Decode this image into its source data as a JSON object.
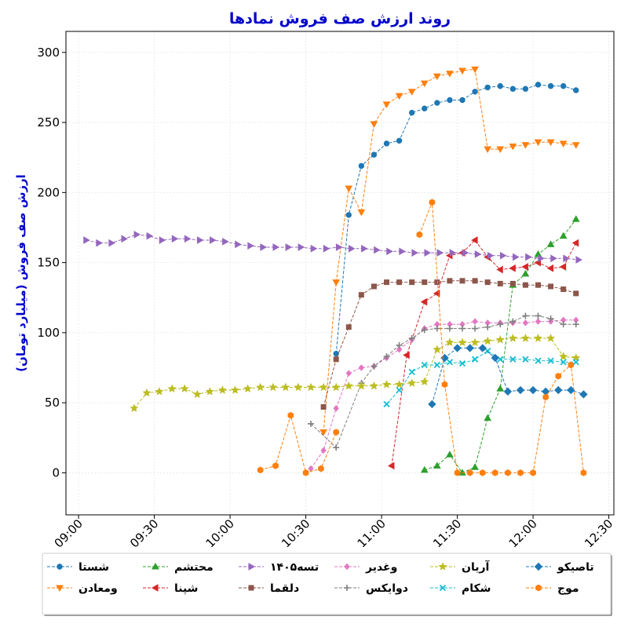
{
  "chart_data": {
    "type": "line",
    "title": "روند ارزش صف فروش نمادها",
    "ylabel": "ارزش صف فروش (میلیارد تومان)",
    "xlabel": "",
    "x_unit": "time (HH:MM)",
    "xlim": [
      "08:55",
      "12:32"
    ],
    "ylim": [
      -30,
      315
    ],
    "x_ticks": [
      "09:00",
      "09:30",
      "10:00",
      "10:30",
      "11:00",
      "11:30",
      "12:00",
      "12:30"
    ],
    "y_ticks": [
      0,
      50,
      100,
      150,
      200,
      250,
      300
    ],
    "grid": true,
    "legend_position": "bottom",
    "series": [
      {
        "name": "شستا",
        "color": "#1f77b4",
        "marker": "circle",
        "x": [
          "10:42",
          "10:47",
          "10:52",
          "10:57",
          "11:02",
          "11:07",
          "11:12",
          "11:17",
          "11:22",
          "11:27",
          "11:32",
          "11:37",
          "11:42",
          "11:47",
          "11:52",
          "11:57",
          "12:02",
          "12:07",
          "12:12",
          "12:17"
        ],
        "y": [
          85,
          184,
          219,
          227,
          235,
          237,
          257,
          260,
          264,
          266,
          266,
          272,
          275,
          276,
          274,
          274,
          277,
          276,
          276,
          273
        ]
      },
      {
        "name": "ومعادن",
        "color": "#ff7f0e",
        "marker": "triangle-down",
        "x": [
          "10:37",
          "10:42",
          "10:47",
          "10:52",
          "10:57",
          "11:02",
          "11:07",
          "11:12",
          "11:17",
          "11:22",
          "11:27",
          "11:32",
          "11:37",
          "11:42",
          "11:47",
          "11:52",
          "11:57",
          "12:02",
          "12:07",
          "12:12",
          "12:17"
        ],
        "y": [
          29,
          136,
          203,
          186,
          249,
          263,
          269,
          272,
          278,
          283,
          285,
          287,
          288,
          231,
          231,
          233,
          234,
          236,
          236,
          235,
          234
        ]
      },
      {
        "name": "محتشم",
        "color": "#2ca02c",
        "marker": "triangle-up",
        "x": [
          "11:17",
          "11:22",
          "11:27",
          "11:32",
          "11:37",
          "11:42",
          "11:47",
          "11:52",
          "11:57",
          "12:02",
          "12:07",
          "12:12",
          "12:17"
        ],
        "y": [
          2,
          5,
          13,
          0,
          4,
          39,
          60,
          134,
          142,
          156,
          163,
          169,
          181
        ]
      },
      {
        "name": "شپنا",
        "color": "#d62728",
        "marker": "triangle-left",
        "x": [
          "11:04",
          "11:10",
          "11:17",
          "11:22",
          "11:27",
          "11:32",
          "11:37",
          "11:42",
          "11:47",
          "11:52",
          "11:57",
          "12:02",
          "12:07",
          "12:12",
          "12:17"
        ],
        "y": [
          5,
          84,
          122,
          128,
          155,
          157,
          166,
          154,
          145,
          146,
          147,
          150,
          146,
          147,
          164
        ]
      },
      {
        "name": "تسه۱۴۰۵",
        "color": "#9467bd",
        "marker": "triangle-right",
        "x": [
          "09:03",
          "09:08",
          "09:13",
          "09:18",
          "09:23",
          "09:28",
          "09:33",
          "09:38",
          "09:43",
          "09:48",
          "09:53",
          "09:58",
          "10:03",
          "10:08",
          "10:13",
          "10:18",
          "10:23",
          "10:28",
          "10:33",
          "10:38",
          "10:43",
          "10:48",
          "10:53",
          "10:58",
          "11:03",
          "11:08",
          "11:13",
          "11:18",
          "11:23",
          "11:28",
          "11:33",
          "11:38",
          "11:43",
          "11:48",
          "11:53",
          "11:58",
          "12:03",
          "12:08",
          "12:13",
          "12:18"
        ],
        "y": [
          166,
          164,
          164,
          167,
          170,
          169,
          166,
          167,
          167,
          166,
          166,
          165,
          163,
          162,
          161,
          161,
          161,
          161,
          160,
          160,
          161,
          160,
          160,
          159,
          158,
          158,
          157,
          157,
          157,
          157,
          157,
          156,
          155,
          155,
          154,
          154,
          153,
          153,
          153,
          152
        ]
      },
      {
        "name": "دلقما",
        "color": "#8c564b",
        "marker": "square",
        "x": [
          "10:37",
          "10:42",
          "10:47",
          "10:52",
          "10:57",
          "11:02",
          "11:07",
          "11:12",
          "11:17",
          "11:22",
          "11:27",
          "11:32",
          "11:37",
          "11:42",
          "11:47",
          "11:52",
          "11:57",
          "12:02",
          "12:07",
          "12:12",
          "12:17"
        ],
        "y": [
          47,
          81,
          104,
          127,
          133,
          136,
          136,
          136,
          136,
          136,
          137,
          137,
          137,
          136,
          135,
          135,
          134,
          134,
          133,
          131,
          128
        ]
      },
      {
        "name": "وغدیر",
        "color": "#e377c2",
        "marker": "diamond",
        "x": [
          "10:32",
          "10:37",
          "10:42",
          "10:47",
          "10:52",
          "10:57",
          "11:02",
          "11:07",
          "11:12",
          "11:17",
          "11:22",
          "11:27",
          "11:32",
          "11:37",
          "11:42",
          "11:47",
          "11:52",
          "11:57",
          "12:02",
          "12:07",
          "12:12",
          "12:17"
        ],
        "y": [
          3,
          16,
          46,
          71,
          75,
          76,
          82,
          88,
          95,
          103,
          106,
          106,
          106,
          108,
          107,
          107,
          107,
          107,
          108,
          108,
          109,
          109
        ]
      },
      {
        "name": "دوایکس",
        "color": "#7f7f7f",
        "marker": "plus",
        "x": [
          "10:32",
          "10:42",
          "10:52",
          "10:57",
          "11:02",
          "11:07",
          "11:12",
          "11:17",
          "11:22",
          "11:27",
          "11:32",
          "11:37",
          "11:42",
          "11:47",
          "11:52",
          "11:57",
          "12:02",
          "12:07",
          "12:12",
          "12:17"
        ],
        "y": [
          35,
          18,
          64,
          76,
          83,
          91,
          96,
          102,
          103,
          103,
          103,
          103,
          104,
          106,
          108,
          112,
          112,
          110,
          106,
          106
        ]
      },
      {
        "name": "آریان",
        "color": "#bcbd22",
        "marker": "star",
        "x": [
          "09:22",
          "09:27",
          "09:32",
          "09:37",
          "09:42",
          "09:47",
          "09:52",
          "09:57",
          "10:02",
          "10:07",
          "10:12",
          "10:17",
          "10:22",
          "10:27",
          "10:32",
          "10:37",
          "10:42",
          "10:47",
          "10:52",
          "10:57",
          "11:02",
          "11:07",
          "11:12",
          "11:17",
          "11:22",
          "11:27",
          "11:32",
          "11:37",
          "11:42",
          "11:47",
          "11:52",
          "11:57",
          "12:02",
          "12:07",
          "12:12",
          "12:17"
        ],
        "y": [
          46,
          57,
          58,
          60,
          60,
          56,
          58,
          59,
          59,
          60,
          61,
          61,
          61,
          61,
          61,
          61,
          61,
          62,
          62,
          62,
          63,
          63,
          64,
          65,
          88,
          93,
          93,
          93,
          94,
          95,
          96,
          96,
          96,
          96,
          83,
          82
        ]
      },
      {
        "name": "شکام",
        "color": "#17becf",
        "marker": "x",
        "x": [
          "11:02",
          "11:07",
          "11:12",
          "11:17",
          "11:22",
          "11:27",
          "11:32",
          "11:37",
          "11:42",
          "11:47",
          "11:52",
          "11:57",
          "12:02",
          "12:07",
          "12:12",
          "12:17"
        ],
        "y": [
          49,
          59,
          72,
          77,
          77,
          79,
          78,
          81,
          87,
          81,
          81,
          81,
          80,
          80,
          79,
          79
        ]
      },
      {
        "name": "تاصیکو",
        "color": "#1f77b4",
        "marker": "diamond-thick",
        "x": [
          "11:20",
          "11:25",
          "11:30",
          "11:35",
          "11:40",
          "11:45",
          "11:50",
          "11:55",
          "12:00",
          "12:05",
          "12:10",
          "12:15",
          "12:20"
        ],
        "y": [
          49,
          82,
          89,
          89,
          89,
          82,
          58,
          59,
          59,
          58,
          59,
          59,
          56
        ]
      },
      {
        "name": "موج",
        "color": "#ff7f0e",
        "marker": "hexagon",
        "segments": [
          {
            "x": [
              "10:12",
              "10:18",
              "10:24",
              "10:30",
              "10:36",
              "10:42"
            ],
            "y": [
              2,
              5,
              41,
              0,
              3,
              29
            ]
          },
          {
            "x": [
              "11:15",
              "11:20",
              "11:25",
              "11:30",
              "11:35",
              "11:40",
              "11:45",
              "11:50",
              "11:55",
              "12:00",
              "12:05",
              "12:10",
              "12:15",
              "12:20"
            ],
            "y": [
              170,
              193,
              63,
              0,
              0,
              0,
              0,
              0,
              0,
              0,
              54,
              69,
              77,
              0
            ]
          }
        ]
      }
    ]
  }
}
